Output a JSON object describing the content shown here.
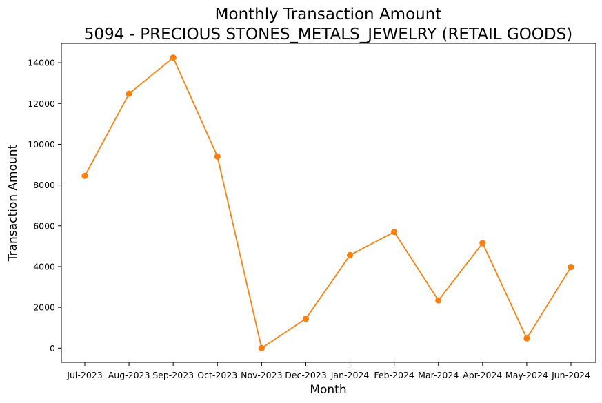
{
  "chart_data": {
    "type": "line",
    "title": "Monthly Transaction Amount",
    "subtitle": "5094 - PRECIOUS STONES_METALS_JEWELRY (RETAIL GOODS)",
    "xlabel": "Month",
    "ylabel": "Transaction Amount",
    "categories": [
      "Jul-2023",
      "Aug-2023",
      "Sep-2023",
      "Oct-2023",
      "Nov-2023",
      "Dec-2023",
      "Jan-2024",
      "Feb-2024",
      "Mar-2024",
      "Apr-2024",
      "May-2024",
      "Jun-2024"
    ],
    "values": [
      8450,
      12480,
      14250,
      9400,
      0,
      1440,
      4560,
      5700,
      2340,
      5150,
      480,
      3980
    ],
    "ylim": [
      -700,
      14950
    ],
    "yticks": [
      0,
      2000,
      4000,
      6000,
      8000,
      10000,
      12000,
      14000
    ],
    "color": "#ff7f0e",
    "grid": false,
    "legend": "none"
  }
}
